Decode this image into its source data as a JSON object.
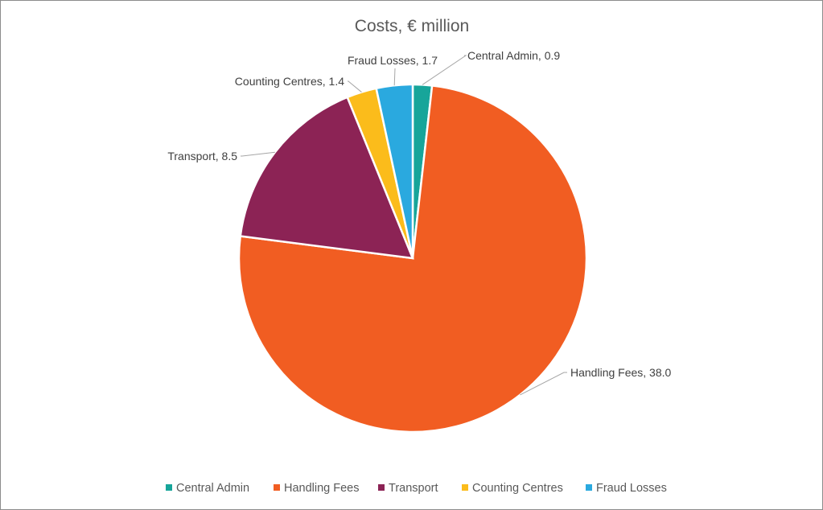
{
  "chart_data": {
    "type": "pie",
    "title": "Costs, € million",
    "categories": [
      "Central Admin",
      "Handling Fees",
      "Transport",
      "Counting Centres",
      "Fraud Losses"
    ],
    "values": [
      0.9,
      38.0,
      8.5,
      1.4,
      1.7
    ],
    "value_labels": [
      "0.9",
      "38.0",
      "8.5",
      "1.4",
      "1.7"
    ],
    "colors": [
      "#17a59a",
      "#f15d22",
      "#8c2355",
      "#fbbc1b",
      "#2aa9df"
    ],
    "legend_position": "bottom",
    "data_labels": "category name and value, outside with leader lines"
  }
}
